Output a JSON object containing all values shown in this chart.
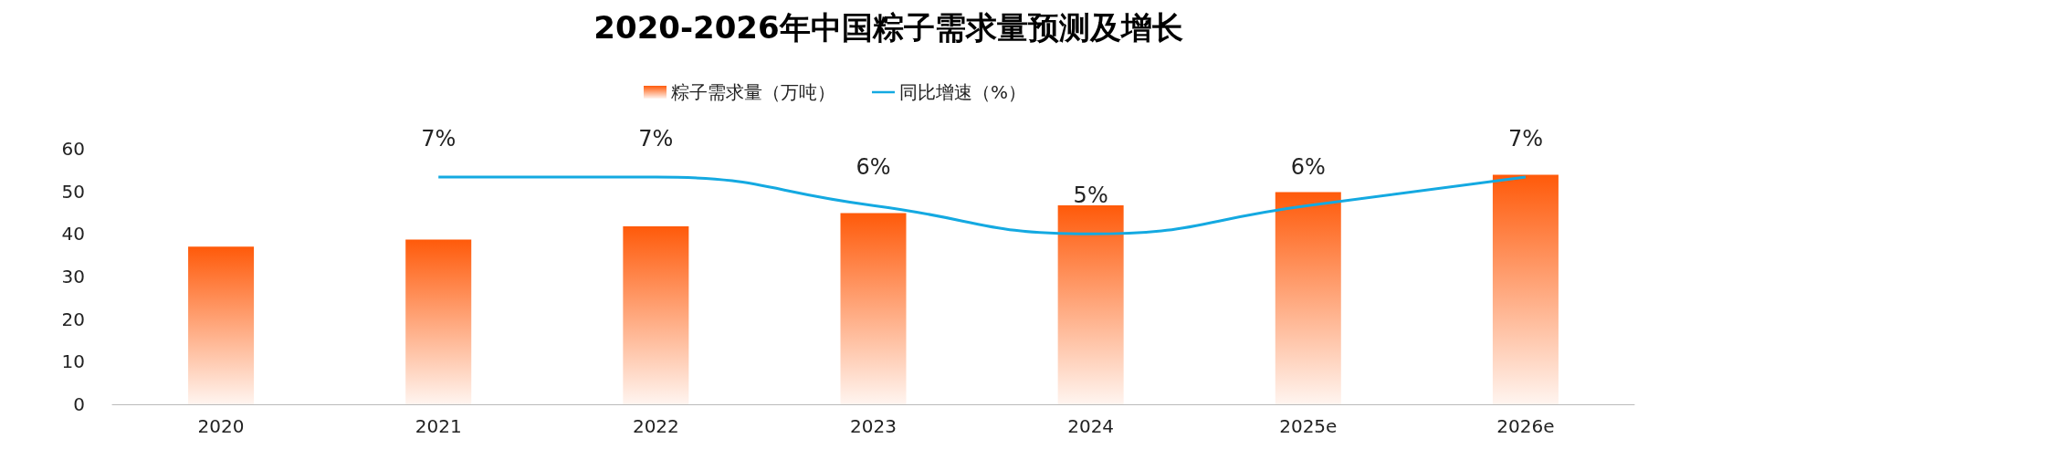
{
  "chart_data": {
    "type": "bar",
    "title": "2020-2026年中国粽子需求量预测及增长",
    "categories": [
      "2020",
      "2021",
      "2022",
      "2023",
      "2024",
      "2025e",
      "2026e"
    ],
    "series": [
      {
        "name": "粽子需求量（万吨）",
        "color": "#ff5a0a",
        "values": [
          37,
          38.7,
          41.8,
          44.9,
          46.7,
          49.8,
          53.9
        ]
      },
      {
        "name": "同比增速（%）",
        "type": "line",
        "axis": "y2",
        "color": "#14a9e1",
        "marker": "none",
        "values": [
          null,
          7,
          7,
          6,
          5,
          6,
          7
        ],
        "value_labels": [
          null,
          "7%",
          "7%",
          "6%",
          "5%",
          "6%",
          "7%"
        ]
      }
    ],
    "ylim": [
      0,
      60
    ],
    "yticks": [
      0,
      10,
      20,
      30,
      40,
      50,
      60
    ],
    "legend": "top"
  }
}
